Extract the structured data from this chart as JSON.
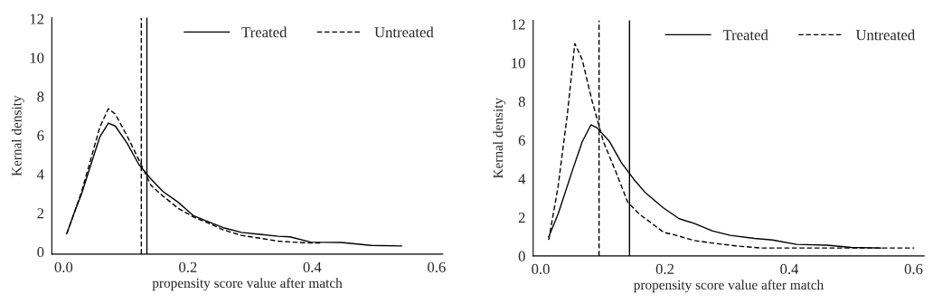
{
  "chart_data": [
    {
      "type": "line",
      "xlabel": "propensity score value after match",
      "ylabel": "Kernal density",
      "xlim": [
        -0.019,
        0.61
      ],
      "ylim": [
        -0.12,
        12.06
      ],
      "xticks": [
        {
          "value": 0,
          "label": "0.0"
        },
        0.2,
        0.4,
        0.6
      ],
      "yticks": [
        0,
        2,
        4,
        6,
        8,
        10,
        12
      ],
      "grid": false,
      "legend": "top right",
      "series": [
        {
          "name": "Treated",
          "color": "#000000",
          "line_style": "solid",
          "x": [
            0.005,
            0.017,
            0.029,
            0.044,
            0.058,
            0.072,
            0.083,
            0.102,
            0.121,
            0.141,
            0.16,
            0.184,
            0.209,
            0.233,
            0.257,
            0.286,
            0.316,
            0.345,
            0.364,
            0.398,
            0.447,
            0.495,
            0.544
          ],
          "values": [
            0.93,
            2.0,
            3.0,
            4.5,
            5.9,
            6.63,
            6.48,
            5.6,
            4.5,
            3.73,
            3.1,
            2.56,
            1.86,
            1.55,
            1.24,
            1.0,
            0.9,
            0.8,
            0.77,
            0.5,
            0.48,
            0.33,
            0.3
          ]
        },
        {
          "name": "Untreated",
          "color": "#000000",
          "line_style": "dashed",
          "x": [
            0.005,
            0.017,
            0.029,
            0.044,
            0.058,
            0.072,
            0.083,
            0.102,
            0.121,
            0.141,
            0.16,
            0.184,
            0.209,
            0.233,
            0.257,
            0.286,
            0.316,
            0.345,
            0.369,
            0.4,
            0.413
          ],
          "values": [
            0.93,
            2.0,
            3.1,
            4.8,
            6.4,
            7.37,
            7.1,
            5.98,
            4.74,
            3.4,
            2.87,
            2.25,
            1.79,
            1.48,
            1.13,
            0.85,
            0.7,
            0.55,
            0.5,
            0.45,
            0.45
          ]
        }
      ],
      "ref_lines": [
        {
          "axis": "x",
          "value": 0.125,
          "color": "#000000",
          "line_style": "dashed"
        },
        {
          "axis": "x",
          "value": 0.134,
          "color": "#000000",
          "line_style": "solid"
        }
      ]
    },
    {
      "type": "line",
      "xlabel": "propensity score value after match",
      "ylabel": "Kernal density",
      "xlim": [
        -0.012,
        0.617
      ],
      "ylim": [
        0,
        12.2
      ],
      "xticks": [
        {
          "value": 0,
          "label": "0.0"
        },
        0.2,
        0.4,
        0.6
      ],
      "yticks": [
        0,
        2,
        4,
        6,
        8,
        10,
        12
      ],
      "grid": false,
      "legend": "top right",
      "series": [
        {
          "name": "Treated",
          "color": "#000000",
          "line_style": "solid",
          "x": [
            0.013,
            0.028,
            0.052,
            0.067,
            0.081,
            0.091,
            0.111,
            0.13,
            0.15,
            0.169,
            0.198,
            0.223,
            0.247,
            0.276,
            0.305,
            0.344,
            0.373,
            0.412,
            0.461,
            0.5,
            0.548
          ],
          "values": [
            0.99,
            2.16,
            4.51,
            5.92,
            6.79,
            6.63,
            5.92,
            4.83,
            3.97,
            3.26,
            2.48,
            1.93,
            1.69,
            1.3,
            1.07,
            0.91,
            0.83,
            0.6,
            0.56,
            0.44,
            0.41
          ]
        },
        {
          "name": "Untreated",
          "color": "#000000",
          "line_style": "dashed",
          "x": [
            0.013,
            0.028,
            0.043,
            0.055,
            0.067,
            0.082,
            0.101,
            0.121,
            0.14,
            0.159,
            0.179,
            0.198,
            0.218,
            0.247,
            0.276,
            0.315,
            0.354,
            0.422,
            0.519,
            0.601
          ],
          "values": [
            0.83,
            3.57,
            7.34,
            11.0,
            10.16,
            8.12,
            5.92,
            4.36,
            2.79,
            2.16,
            1.69,
            1.22,
            1.07,
            0.8,
            0.67,
            0.52,
            0.41,
            0.41,
            0.41,
            0.41
          ]
        }
      ],
      "ref_lines": [
        {
          "axis": "x",
          "value": 0.094,
          "color": "#000000",
          "line_style": "dashed"
        },
        {
          "axis": "x",
          "value": 0.143,
          "color": "#000000",
          "line_style": "solid"
        }
      ]
    }
  ]
}
